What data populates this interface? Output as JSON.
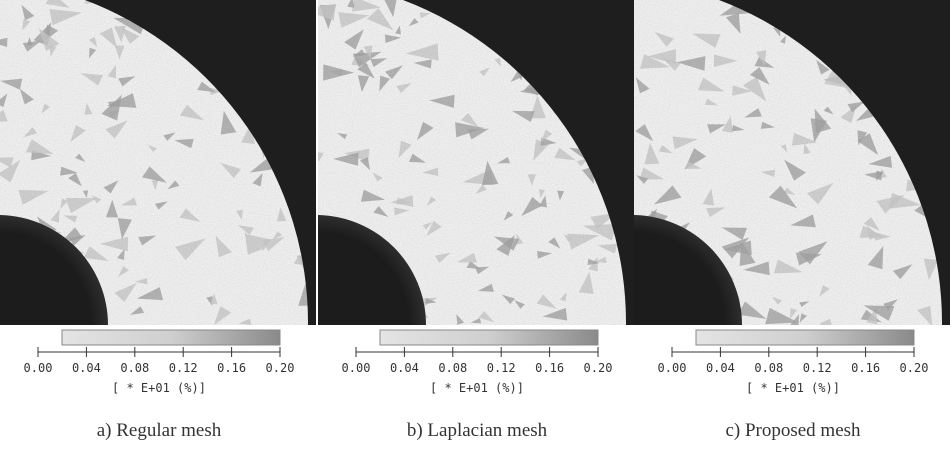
{
  "panels": [
    {
      "caption": "a) Regular mesh",
      "colorbar": {
        "ticks": [
          {
            "value": 0,
            "label": "0.00"
          },
          {
            "value": 0.04,
            "label": "0.04"
          },
          {
            "value": 0.08,
            "label": "0.08"
          },
          {
            "value": 0.12,
            "label": "0.12"
          },
          {
            "value": 0.16,
            "label": "0.16"
          },
          {
            "value": 0.2,
            "label": "0.20"
          }
        ],
        "unit": "[ * E+01 (%)]"
      }
    },
    {
      "caption": "b) Laplacian mesh",
      "colorbar": {
        "ticks": [
          {
            "value": 0,
            "label": "0.00"
          },
          {
            "value": 0.04,
            "label": "0.04"
          },
          {
            "value": 0.08,
            "label": "0.08"
          },
          {
            "value": 0.12,
            "label": "0.12"
          },
          {
            "value": 0.16,
            "label": "0.16"
          },
          {
            "value": 0.2,
            "label": "0.20"
          }
        ],
        "unit": "[ * E+01 (%)]"
      }
    },
    {
      "caption": "c) Proposed mesh",
      "colorbar": {
        "ticks": [
          {
            "value": 0,
            "label": "0.00"
          },
          {
            "value": 0.04,
            "label": "0.04"
          },
          {
            "value": 0.08,
            "label": "0.08"
          },
          {
            "value": 0.12,
            "label": "0.12"
          },
          {
            "value": 0.16,
            "label": "0.16"
          },
          {
            "value": 0.2,
            "label": "0.20"
          }
        ],
        "unit": "[ * E+01 (%)]"
      }
    }
  ]
}
